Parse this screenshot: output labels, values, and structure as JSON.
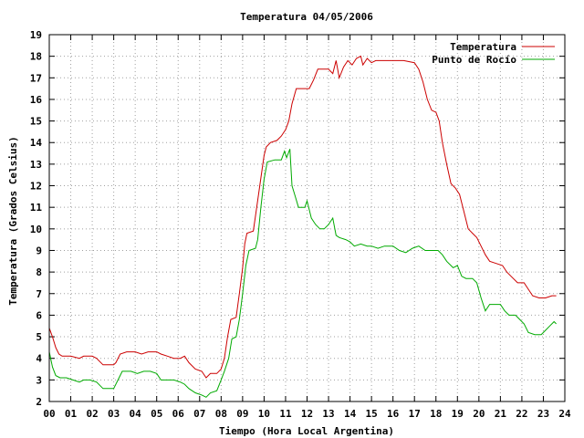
{
  "chart_data": {
    "type": "line",
    "title": "Temperatura 04/05/2006",
    "xlabel": "Tiempo (Hora Local Argentina)",
    "ylabel": "Temperatura (Grados Celsius)",
    "xlim": [
      0,
      24
    ],
    "ylim": [
      2,
      19
    ],
    "x_ticks": [
      0,
      1,
      2,
      3,
      4,
      5,
      6,
      7,
      8,
      9,
      10,
      11,
      12,
      13,
      14,
      15,
      16,
      17,
      18,
      19,
      20,
      21,
      22,
      23,
      24
    ],
    "x_tick_labels": [
      "00",
      "01",
      "02",
      "03",
      "04",
      "05",
      "06",
      "07",
      "08",
      "09",
      "10",
      "11",
      "12",
      "13",
      "14",
      "15",
      "16",
      "17",
      "18",
      "19",
      "20",
      "21",
      "22",
      "23",
      "24"
    ],
    "y_ticks": [
      2,
      3,
      4,
      5,
      6,
      7,
      8,
      9,
      10,
      11,
      12,
      13,
      14,
      15,
      16,
      17,
      18,
      19
    ],
    "grid": true,
    "legend_position": "top-right",
    "series": [
      {
        "name": "Temperatura",
        "color": "#cc0000",
        "points": [
          [
            0.0,
            5.4
          ],
          [
            0.15,
            5.0
          ],
          [
            0.3,
            4.5
          ],
          [
            0.45,
            4.2
          ],
          [
            0.6,
            4.1
          ],
          [
            1.0,
            4.1
          ],
          [
            1.4,
            4.0
          ],
          [
            1.6,
            4.1
          ],
          [
            2.0,
            4.1
          ],
          [
            2.2,
            4.0
          ],
          [
            2.5,
            3.7
          ],
          [
            3.0,
            3.7
          ],
          [
            3.1,
            3.8
          ],
          [
            3.3,
            4.2
          ],
          [
            3.6,
            4.3
          ],
          [
            4.0,
            4.3
          ],
          [
            4.3,
            4.2
          ],
          [
            4.6,
            4.3
          ],
          [
            5.0,
            4.3
          ],
          [
            5.2,
            4.2
          ],
          [
            5.5,
            4.1
          ],
          [
            5.8,
            4.0
          ],
          [
            6.1,
            4.0
          ],
          [
            6.3,
            4.1
          ],
          [
            6.5,
            3.8
          ],
          [
            6.8,
            3.5
          ],
          [
            7.1,
            3.4
          ],
          [
            7.3,
            3.1
          ],
          [
            7.5,
            3.3
          ],
          [
            7.8,
            3.3
          ],
          [
            8.0,
            3.5
          ],
          [
            8.15,
            4.0
          ],
          [
            8.3,
            5.0
          ],
          [
            8.45,
            5.8
          ],
          [
            8.7,
            5.9
          ],
          [
            8.85,
            7.0
          ],
          [
            9.0,
            8.2
          ],
          [
            9.1,
            9.3
          ],
          [
            9.2,
            9.8
          ],
          [
            9.5,
            9.9
          ],
          [
            9.6,
            10.6
          ],
          [
            9.8,
            12.0
          ],
          [
            10.0,
            13.4
          ],
          [
            10.1,
            13.8
          ],
          [
            10.3,
            14.0
          ],
          [
            10.6,
            14.1
          ],
          [
            10.8,
            14.3
          ],
          [
            11.0,
            14.6
          ],
          [
            11.15,
            15.0
          ],
          [
            11.3,
            15.8
          ],
          [
            11.5,
            16.5
          ],
          [
            11.8,
            16.5
          ],
          [
            12.1,
            16.5
          ],
          [
            12.3,
            16.9
          ],
          [
            12.5,
            17.4
          ],
          [
            12.8,
            17.4
          ],
          [
            13.0,
            17.4
          ],
          [
            13.2,
            17.2
          ],
          [
            13.35,
            17.8
          ],
          [
            13.5,
            17.0
          ],
          [
            13.7,
            17.5
          ],
          [
            13.9,
            17.8
          ],
          [
            14.1,
            17.6
          ],
          [
            14.3,
            17.9
          ],
          [
            14.5,
            18.0
          ],
          [
            14.6,
            17.6
          ],
          [
            14.8,
            17.9
          ],
          [
            15.0,
            17.7
          ],
          [
            15.2,
            17.8
          ],
          [
            15.5,
            17.8
          ],
          [
            16.0,
            17.8
          ],
          [
            16.5,
            17.8
          ],
          [
            17.0,
            17.7
          ],
          [
            17.2,
            17.4
          ],
          [
            17.4,
            16.8
          ],
          [
            17.6,
            16.0
          ],
          [
            17.8,
            15.5
          ],
          [
            18.0,
            15.4
          ],
          [
            18.15,
            15.0
          ],
          [
            18.3,
            14.0
          ],
          [
            18.5,
            13.0
          ],
          [
            18.7,
            12.1
          ],
          [
            18.9,
            11.9
          ],
          [
            19.1,
            11.6
          ],
          [
            19.3,
            10.8
          ],
          [
            19.5,
            10.0
          ],
          [
            19.7,
            9.8
          ],
          [
            19.9,
            9.6
          ],
          [
            20.1,
            9.2
          ],
          [
            20.3,
            8.8
          ],
          [
            20.5,
            8.5
          ],
          [
            20.8,
            8.4
          ],
          [
            21.1,
            8.3
          ],
          [
            21.3,
            8.0
          ],
          [
            21.5,
            7.8
          ],
          [
            21.8,
            7.5
          ],
          [
            22.1,
            7.5
          ],
          [
            22.3,
            7.2
          ],
          [
            22.5,
            6.9
          ],
          [
            22.8,
            6.8
          ],
          [
            23.1,
            6.8
          ],
          [
            23.4,
            6.9
          ],
          [
            23.6,
            6.9
          ]
        ]
      },
      {
        "name": "Punto de Rocío",
        "color": "#00aa00",
        "points": [
          [
            0.0,
            4.3
          ],
          [
            0.15,
            3.6
          ],
          [
            0.3,
            3.2
          ],
          [
            0.5,
            3.1
          ],
          [
            0.8,
            3.1
          ],
          [
            1.1,
            3.0
          ],
          [
            1.4,
            2.9
          ],
          [
            1.6,
            3.0
          ],
          [
            1.9,
            3.0
          ],
          [
            2.2,
            2.9
          ],
          [
            2.5,
            2.6
          ],
          [
            3.0,
            2.6
          ],
          [
            3.2,
            3.0
          ],
          [
            3.4,
            3.4
          ],
          [
            3.8,
            3.4
          ],
          [
            4.1,
            3.3
          ],
          [
            4.4,
            3.4
          ],
          [
            4.7,
            3.4
          ],
          [
            5.0,
            3.3
          ],
          [
            5.2,
            3.0
          ],
          [
            5.5,
            3.0
          ],
          [
            5.8,
            3.0
          ],
          [
            6.1,
            2.9
          ],
          [
            6.3,
            2.8
          ],
          [
            6.5,
            2.6
          ],
          [
            6.8,
            2.4
          ],
          [
            7.1,
            2.3
          ],
          [
            7.3,
            2.2
          ],
          [
            7.5,
            2.4
          ],
          [
            7.8,
            2.5
          ],
          [
            8.0,
            3.0
          ],
          [
            8.15,
            3.4
          ],
          [
            8.35,
            4.0
          ],
          [
            8.5,
            4.9
          ],
          [
            8.7,
            5.0
          ],
          [
            8.85,
            5.8
          ],
          [
            9.0,
            7.0
          ],
          [
            9.15,
            8.3
          ],
          [
            9.3,
            9.0
          ],
          [
            9.6,
            9.1
          ],
          [
            9.7,
            9.5
          ],
          [
            9.85,
            11.0
          ],
          [
            10.0,
            12.3
          ],
          [
            10.15,
            13.1
          ],
          [
            10.5,
            13.2
          ],
          [
            10.8,
            13.2
          ],
          [
            10.95,
            13.6
          ],
          [
            11.05,
            13.3
          ],
          [
            11.2,
            13.7
          ],
          [
            11.3,
            12.0
          ],
          [
            11.45,
            11.5
          ],
          [
            11.6,
            11.0
          ],
          [
            11.9,
            11.0
          ],
          [
            12.0,
            11.3
          ],
          [
            12.2,
            10.5
          ],
          [
            12.4,
            10.2
          ],
          [
            12.6,
            10.0
          ],
          [
            12.8,
            10.0
          ],
          [
            13.0,
            10.2
          ],
          [
            13.2,
            10.5
          ],
          [
            13.35,
            9.7
          ],
          [
            13.5,
            9.6
          ],
          [
            13.8,
            9.5
          ],
          [
            14.0,
            9.4
          ],
          [
            14.2,
            9.2
          ],
          [
            14.5,
            9.3
          ],
          [
            14.8,
            9.2
          ],
          [
            15.0,
            9.2
          ],
          [
            15.3,
            9.1
          ],
          [
            15.6,
            9.2
          ],
          [
            16.0,
            9.2
          ],
          [
            16.3,
            9.0
          ],
          [
            16.6,
            8.9
          ],
          [
            16.9,
            9.1
          ],
          [
            17.2,
            9.2
          ],
          [
            17.5,
            9.0
          ],
          [
            17.8,
            9.0
          ],
          [
            18.1,
            9.0
          ],
          [
            18.3,
            8.8
          ],
          [
            18.5,
            8.5
          ],
          [
            18.8,
            8.2
          ],
          [
            19.0,
            8.3
          ],
          [
            19.2,
            7.8
          ],
          [
            19.4,
            7.7
          ],
          [
            19.7,
            7.7
          ],
          [
            19.9,
            7.5
          ],
          [
            20.1,
            6.8
          ],
          [
            20.3,
            6.2
          ],
          [
            20.5,
            6.5
          ],
          [
            20.8,
            6.5
          ],
          [
            21.0,
            6.5
          ],
          [
            21.2,
            6.2
          ],
          [
            21.4,
            6.0
          ],
          [
            21.7,
            6.0
          ],
          [
            21.9,
            5.8
          ],
          [
            22.1,
            5.6
          ],
          [
            22.3,
            5.2
          ],
          [
            22.6,
            5.1
          ],
          [
            22.9,
            5.1
          ],
          [
            23.1,
            5.3
          ],
          [
            23.3,
            5.5
          ],
          [
            23.5,
            5.7
          ],
          [
            23.6,
            5.6
          ]
        ]
      }
    ]
  }
}
